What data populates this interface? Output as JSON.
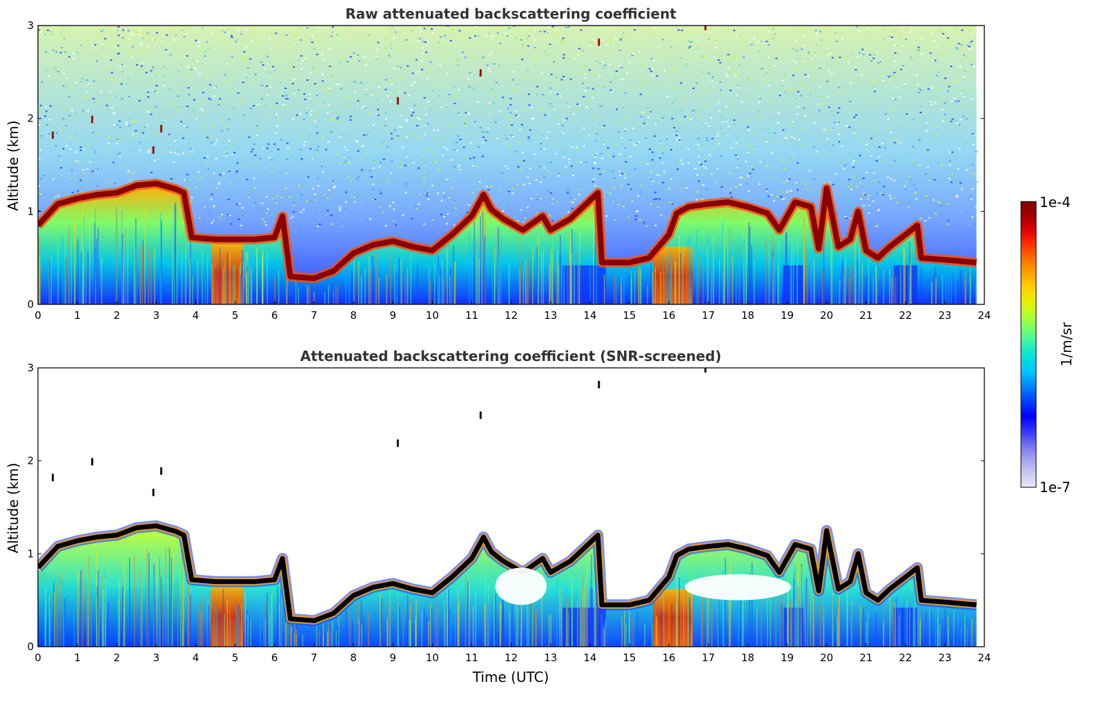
{
  "chart_data": [
    {
      "type": "heatmap",
      "title": "Raw attenuated backscattering coefficient",
      "xlabel": "",
      "ylabel": "Altitude (km)",
      "xlim": [
        0,
        24
      ],
      "ylim": [
        0,
        3
      ],
      "xticks": [
        "0",
        "1",
        "2",
        "3",
        "4",
        "5",
        "6",
        "7",
        "8",
        "9",
        "10",
        "11",
        "12",
        "13",
        "14",
        "15",
        "16",
        "17",
        "18",
        "19",
        "20",
        "21",
        "22",
        "23",
        "24"
      ],
      "yticks": [
        "0",
        "1",
        "2",
        "3"
      ],
      "colorscale": "jet",
      "data_end_time": 23.8,
      "layer_top": [
        [
          0,
          0.85
        ],
        [
          0.5,
          1.08
        ],
        [
          1,
          1.14
        ],
        [
          1.5,
          1.18
        ],
        [
          2,
          1.2
        ],
        [
          2.5,
          1.28
        ],
        [
          3,
          1.3
        ],
        [
          3.5,
          1.24
        ],
        [
          3.7,
          1.2
        ],
        [
          3.9,
          0.72
        ],
        [
          4.5,
          0.7
        ],
        [
          5,
          0.7
        ],
        [
          5.5,
          0.7
        ],
        [
          6,
          0.72
        ],
        [
          6.2,
          0.95
        ],
        [
          6.4,
          0.3
        ],
        [
          7,
          0.28
        ],
        [
          7.5,
          0.36
        ],
        [
          8,
          0.55
        ],
        [
          8.5,
          0.64
        ],
        [
          9,
          0.68
        ],
        [
          9.5,
          0.62
        ],
        [
          10,
          0.58
        ],
        [
          10.5,
          0.75
        ],
        [
          11,
          0.95
        ],
        [
          11.3,
          1.18
        ],
        [
          11.5,
          1.02
        ],
        [
          11.8,
          0.92
        ],
        [
          12.3,
          0.8
        ],
        [
          12.8,
          0.95
        ],
        [
          13,
          0.8
        ],
        [
          13.5,
          0.92
        ],
        [
          14,
          1.12
        ],
        [
          14.2,
          1.2
        ],
        [
          14.3,
          0.45
        ],
        [
          15,
          0.45
        ],
        [
          15.5,
          0.5
        ],
        [
          16,
          0.75
        ],
        [
          16.2,
          0.98
        ],
        [
          16.5,
          1.05
        ],
        [
          17,
          1.08
        ],
        [
          17.5,
          1.1
        ],
        [
          18,
          1.05
        ],
        [
          18.5,
          0.98
        ],
        [
          18.8,
          0.8
        ],
        [
          19.2,
          1.1
        ],
        [
          19.6,
          1.05
        ],
        [
          19.8,
          0.6
        ],
        [
          20,
          1.25
        ],
        [
          20.3,
          0.62
        ],
        [
          20.6,
          0.7
        ],
        [
          20.8,
          1.0
        ],
        [
          21,
          0.58
        ],
        [
          21.3,
          0.5
        ],
        [
          21.6,
          0.62
        ],
        [
          22,
          0.75
        ],
        [
          22.3,
          0.85
        ],
        [
          22.4,
          0.5
        ],
        [
          23,
          0.48
        ],
        [
          23.8,
          0.45
        ]
      ]
    },
    {
      "type": "heatmap",
      "title": "Attenuated backscattering coefficient (SNR-screened)",
      "xlabel": "Time (UTC)",
      "ylabel": "Altitude (km)",
      "xlim": [
        0,
        24
      ],
      "ylim": [
        0,
        3
      ],
      "xticks": [
        "0",
        "1",
        "2",
        "3",
        "4",
        "5",
        "6",
        "7",
        "8",
        "9",
        "10",
        "11",
        "12",
        "13",
        "14",
        "15",
        "16",
        "17",
        "18",
        "19",
        "20",
        "21",
        "22",
        "23",
        "24"
      ],
      "yticks": [
        "0",
        "1",
        "2",
        "3"
      ],
      "colorscale": "jet",
      "data_end_time": 23.8
    }
  ],
  "colorbar": {
    "label": "1/m/sr",
    "max_label": "1e-4",
    "min_label": "1e-7",
    "colors": [
      "#e8e8f8",
      "#c8c8f0",
      "#a0a0ee",
      "#7070f0",
      "#3030ff",
      "#0000ff",
      "#0040ff",
      "#0080ff",
      "#00c0ff",
      "#00e0e0",
      "#30f0b0",
      "#70ff70",
      "#b0ff30",
      "#e8f000",
      "#ffd000",
      "#ffa000",
      "#ff7000",
      "#ff3000",
      "#e00000",
      "#a00000",
      "#800000"
    ]
  }
}
